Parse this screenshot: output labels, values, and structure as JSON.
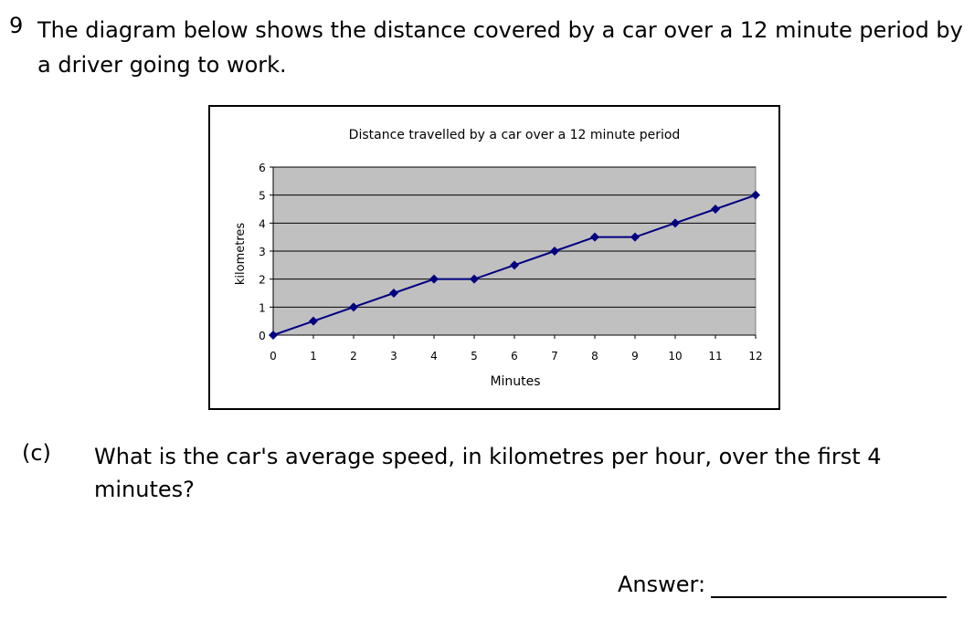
{
  "question": {
    "number": "9",
    "text": "The diagram below shows the distance covered by a car over a 12 minute period by a driver going to work."
  },
  "part_c": {
    "label": "(c)",
    "text": "What is the car's average speed, in kilometres per hour, over the first 4 minutes?"
  },
  "answer": {
    "label": "Answer:"
  },
  "chart_data": {
    "type": "line",
    "title": "Distance travelled by a car over a 12 minute period",
    "xlabel": "Minutes",
    "ylabel": "kilometres",
    "xlim": [
      0,
      12
    ],
    "ylim": [
      0,
      6
    ],
    "x_ticks": [
      0,
      1,
      2,
      3,
      4,
      5,
      6,
      7,
      8,
      9,
      10,
      11,
      12
    ],
    "y_ticks": [
      0,
      1,
      2,
      3,
      4,
      5,
      6
    ],
    "grid": true,
    "legend": "none",
    "plot_background": "#c0c0c0",
    "series_color": "#000080",
    "series": [
      {
        "x": [
          0,
          1,
          2,
          3,
          4,
          5,
          6,
          7,
          8,
          9,
          10,
          11,
          12
        ],
        "y": [
          0,
          0.5,
          1,
          1.5,
          2,
          2,
          2.5,
          3,
          3.5,
          3.5,
          4,
          4.5,
          5
        ]
      }
    ]
  }
}
